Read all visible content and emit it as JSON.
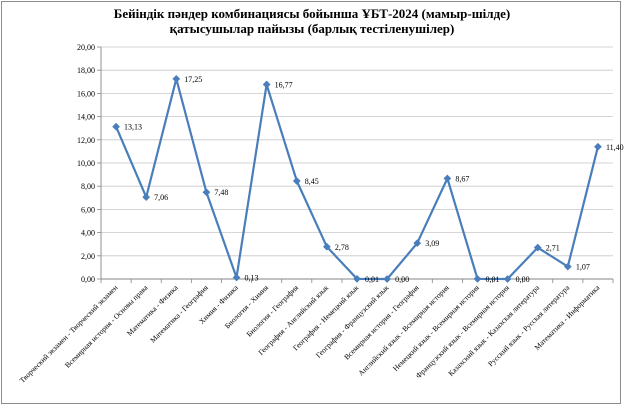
{
  "chart_data": {
    "type": "line",
    "title_lines": [
      "Бейіндік пәндер комбинациясы бойынша ҰБТ-2024 (мамыр-шілде)",
      "қатысушылар  пайызы (барлық тестіленушілер)"
    ],
    "categories": [
      "Творческий экзамен - Творческий экзамен",
      "Всемирная история - Основы права",
      "Математика - Физика",
      "Математика - География",
      "Химия - Физика",
      "Биология - Химия",
      "Биология - География",
      "География - Английский язык",
      "География - Немецкий язык",
      "География - Французский язык",
      "Всемирная история - География",
      "Английский язык - Всемирная история",
      "Немецкий язык - Всемирная история",
      "Французский язык - Всемирная история",
      "Казахский язык - Казахская литература",
      "Русский язык - Русская литература",
      "Математика - Информатика"
    ],
    "values": [
      13.13,
      7.06,
      17.25,
      7.48,
      0.13,
      16.77,
      8.45,
      2.78,
      0.01,
      0.0,
      3.09,
      8.67,
      0.01,
      0.0,
      2.71,
      1.07,
      11.4
    ],
    "data_labels": [
      "13,13",
      "7,06",
      "17,25",
      "7,48",
      "0,13",
      "16,77",
      "8,45",
      "2,78",
      "0,01",
      "0,00",
      "3,09",
      "8,67",
      "0,01",
      "0,00",
      "2,71",
      "1,07",
      "11,40"
    ],
    "ylim": [
      0,
      20
    ],
    "y_ticks": [
      "0,00",
      "2,00",
      "4,00",
      "6,00",
      "8,00",
      "10,00",
      "12,00",
      "14,00",
      "16,00",
      "18,00",
      "20,00"
    ],
    "grid": true,
    "legend": false,
    "colors": {
      "line": "#4a7ebb",
      "marker": "#4a7ebb",
      "grid": "#c8c8c8",
      "axis": "#868686"
    }
  }
}
